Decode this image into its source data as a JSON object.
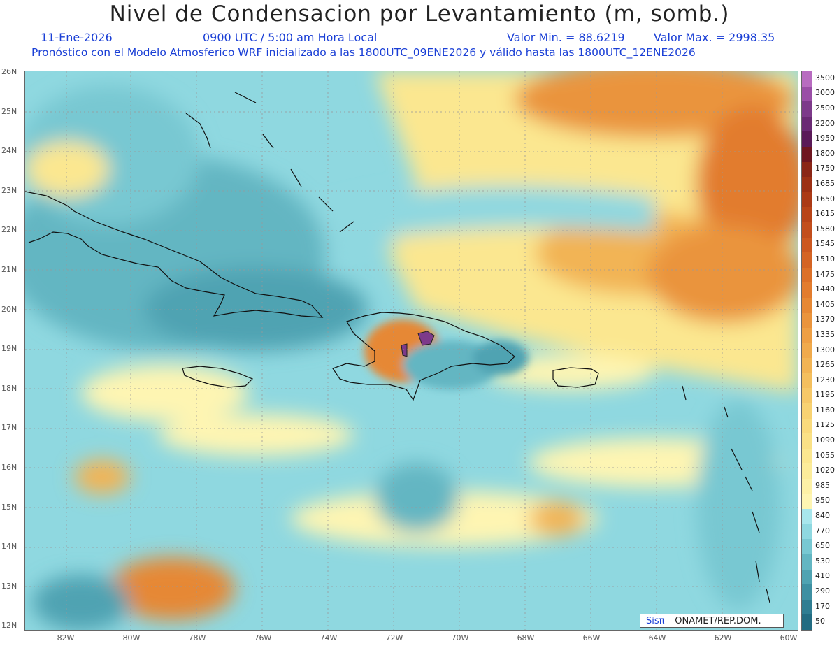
{
  "title": "Nivel de Condensacion por Levantamiento (m, somb.)",
  "date": "11-Ene-2026",
  "time": "0900 UTC / 5:00 am Hora Local",
  "value_min": "Valor Min. = 88.6219",
  "value_max": "Valor Max. = 2998.35",
  "forecast_note": "Pronóstico con el Modelo Atmosferico WRF inicializado a las 1800UTC_09ENE2026 y válido hasta las  1800UTC_12ENE2026",
  "lat_labels": [
    "26N",
    "25N",
    "24N",
    "23N",
    "22N",
    "21N",
    "20N",
    "19N",
    "18N",
    "17N",
    "16N",
    "15N",
    "14N",
    "13N",
    "12N"
  ],
  "lon_labels": [
    "82W",
    "80W",
    "78W",
    "76W",
    "74W",
    "72W",
    "70W",
    "68W",
    "66W",
    "64W",
    "62W",
    "60W"
  ],
  "colorbar": {
    "labels": [
      "3500",
      "3000",
      "2500",
      "2200",
      "1950",
      "1800",
      "1750",
      "1685",
      "1650",
      "1615",
      "1580",
      "1545",
      "1510",
      "1475",
      "1440",
      "1405",
      "1370",
      "1335",
      "1300",
      "1265",
      "1230",
      "1195",
      "1160",
      "1125",
      "1090",
      "1055",
      "1020",
      "985",
      "950",
      "840",
      "770",
      "650",
      "530",
      "410",
      "290",
      "170",
      "50"
    ],
    "colors": [
      "#b86cc0",
      "#9a4ea6",
      "#7d3a8a",
      "#6a2a74",
      "#5a1a58",
      "#6e1620",
      "#8a2616",
      "#9c3014",
      "#ab3a16",
      "#b84418",
      "#c24e1c",
      "#cc5820",
      "#d46424",
      "#dc7028",
      "#e27c2e",
      "#e68834",
      "#ea943c",
      "#ee9f44",
      "#f0aa4c",
      "#f2b454",
      "#f4bf5e",
      "#f6c868",
      "#f8d272",
      "#f9da7c",
      "#fae186",
      "#fbe790",
      "#fcec9a",
      "#fdf1a6",
      "#fef5b2",
      "#a8e6ec",
      "#8fd8e0",
      "#78c8d2",
      "#63b6c2",
      "#4fa3b2",
      "#3e90a2",
      "#2f7d92",
      "#236c82"
    ]
  },
  "credit": {
    "brand": "Sisπ",
    "text": " – ONAMET/REP.DOM."
  },
  "colors": {
    "ocean_low": "#5fb1bf",
    "mid": "#a8e6ec",
    "high": "#fbe790",
    "higher": "#e4892f"
  }
}
